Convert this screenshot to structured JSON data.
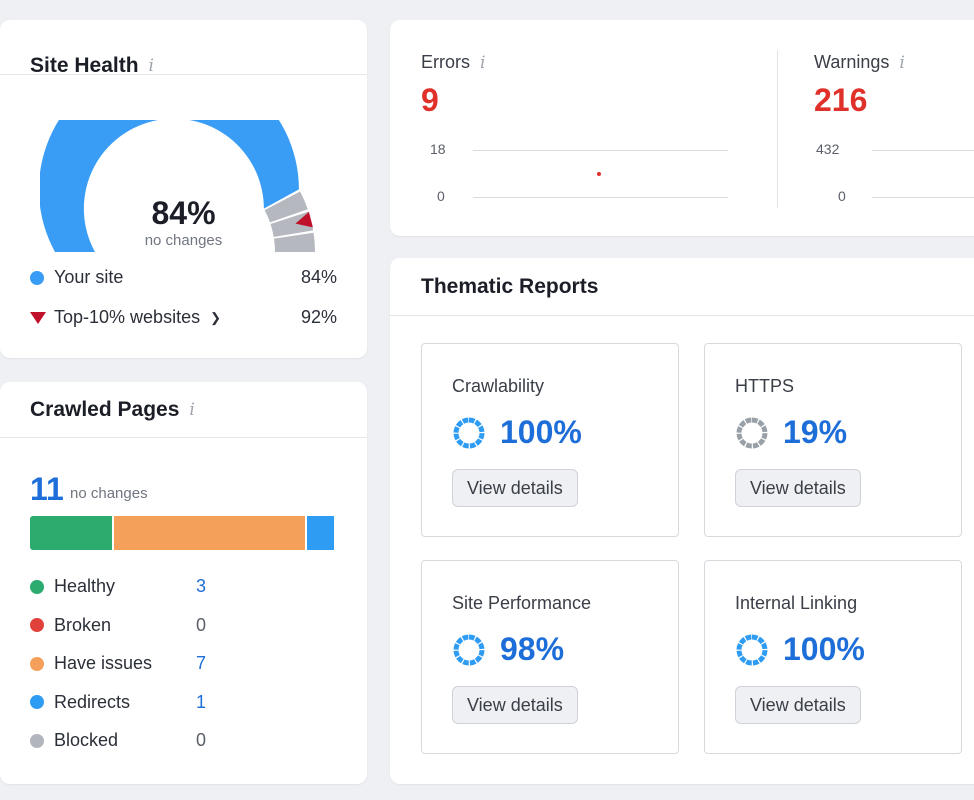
{
  "site_health": {
    "title": "Site Health",
    "score": "84%",
    "sub": "no changes",
    "score_fraction": 0.84,
    "top10_fraction": 0.92,
    "colors": {
      "your_site": "#3a9df5",
      "top10": "#c0112b",
      "rest": "#b5b8bf"
    },
    "legend": [
      {
        "label": "Your site",
        "value": "84%"
      },
      {
        "label": "Top-10% websites",
        "value": "92%"
      }
    ]
  },
  "crawled_pages": {
    "title": "Crawled Pages",
    "count": "11",
    "sub": "no changes",
    "items": [
      {
        "label": "Healthy",
        "value": "3",
        "count": 3,
        "color": "#2bab6e",
        "blue": true
      },
      {
        "label": "Broken",
        "value": "0",
        "count": 0,
        "color": "#e0413a",
        "blue": false
      },
      {
        "label": "Have issues",
        "value": "7",
        "count": 7,
        "color": "#f5a05a",
        "blue": true
      },
      {
        "label": "Redirects",
        "value": "1",
        "count": 1,
        "color": "#2f9cf4",
        "blue": true
      },
      {
        "label": "Blocked",
        "value": "0",
        "count": 0,
        "color": "#b2b5bb",
        "blue": false
      }
    ]
  },
  "issues": {
    "errors": {
      "label": "Errors",
      "value": "9",
      "axis_max": "18",
      "axis_min": "0"
    },
    "warnings": {
      "label": "Warnings",
      "value": "216",
      "axis_max": "432",
      "axis_min": "0"
    }
  },
  "thematic": {
    "title": "Thematic Reports",
    "button_label": "View details",
    "reports": [
      {
        "name": "Crawlability",
        "score": "100%",
        "fraction": 1.0,
        "color": "#2f9cf4"
      },
      {
        "name": "HTTPS",
        "score": "19%",
        "fraction": 0.19,
        "color": "#9aa0a8"
      },
      {
        "name": "Site Performance",
        "score": "98%",
        "fraction": 0.98,
        "color": "#2f9cf4"
      },
      {
        "name": "Internal Linking",
        "score": "100%",
        "fraction": 1.0,
        "color": "#2f9cf4"
      }
    ]
  }
}
